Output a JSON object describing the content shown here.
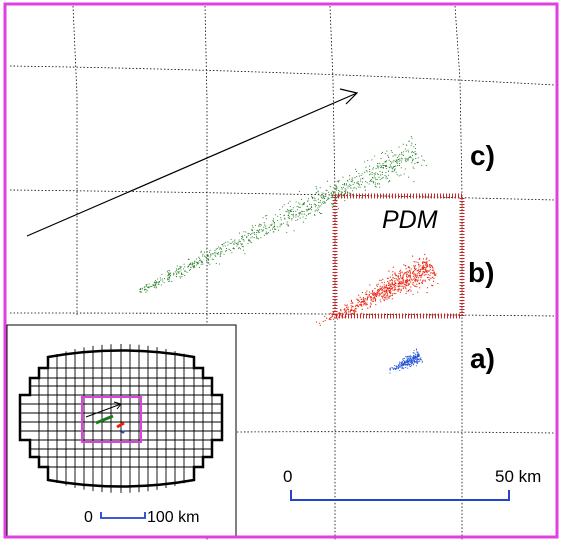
{
  "labels": {
    "region_c": "c)",
    "region_b": "b)",
    "region_a": "a)",
    "pdm": "PDM"
  },
  "scale_bar": {
    "start_label": "0",
    "end_label": "50 km"
  },
  "inset": {
    "scale_start_label": "0",
    "scale_end_label": "100 km"
  },
  "colors": {
    "frame": "#e040e0",
    "pdm_box": "#cc2222",
    "scale_bar": "#2244cc",
    "cluster_a": "#1f4fd6",
    "cluster_b": "#e8230c",
    "cluster_c": "#1b7a1b",
    "grid": "#000000",
    "arrow": "#000000"
  },
  "icons": {
    "direction_arrow": "arrow-icon"
  }
}
